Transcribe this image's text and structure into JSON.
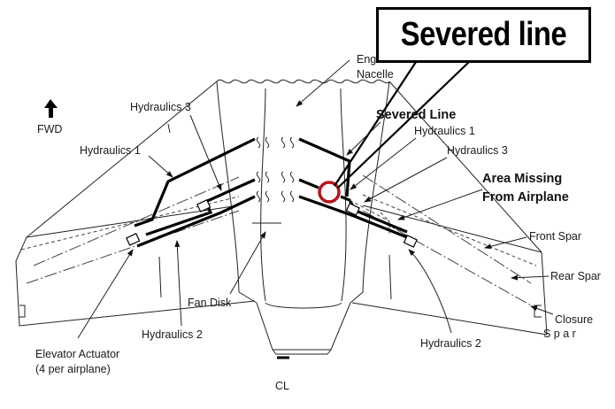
{
  "callout": {
    "text": "Severed line"
  },
  "labels": {
    "fwd": "FWD",
    "engine": "Engine",
    "nacelle": "Nacelle",
    "hydraulics3_left": "Hydraulics 3",
    "hydraulics1_left": "Hydraulics 1",
    "severed_line": "Severed Line",
    "hydraulics1_right": "Hydraulics 1",
    "hydraulics3_right": "Hydraulics 3",
    "area_missing_1": "Area Missing",
    "area_missing_2": "From Airplane",
    "front_spar": "Front Spar",
    "rear_spar": "Rear Spar",
    "closure": "Closure",
    "spar": "S p a r",
    "fan_disk": "Fan Disk",
    "elevator_actuator_1": "Elevator Actuator",
    "elevator_actuator_2": "(4 per airplane)",
    "hydraulics2_left": "Hydraulics 2",
    "hydraulics2_right": "Hydraulics 2",
    "centerline": "CL"
  },
  "colors": {
    "highlight_circle": "#b3161c",
    "line": "#000000"
  }
}
